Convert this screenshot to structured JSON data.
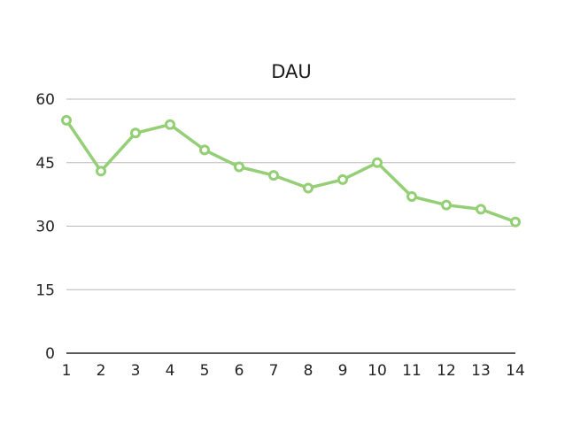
{
  "chart_data": {
    "type": "line",
    "title": "DAU",
    "xlabel": "",
    "ylabel": "",
    "x": [
      1,
      2,
      3,
      4,
      5,
      6,
      7,
      8,
      9,
      10,
      11,
      12,
      13,
      14
    ],
    "series": [
      {
        "values": [
          55,
          43,
          52,
          54,
          48,
          44,
          42,
          39,
          41,
          45,
          37,
          35,
          34,
          31
        ],
        "color": "#94cf76"
      }
    ],
    "ylim": [
      0,
      60
    ],
    "yticks": [
      0,
      15,
      30,
      45,
      60
    ],
    "grid": true,
    "legend": "none"
  }
}
